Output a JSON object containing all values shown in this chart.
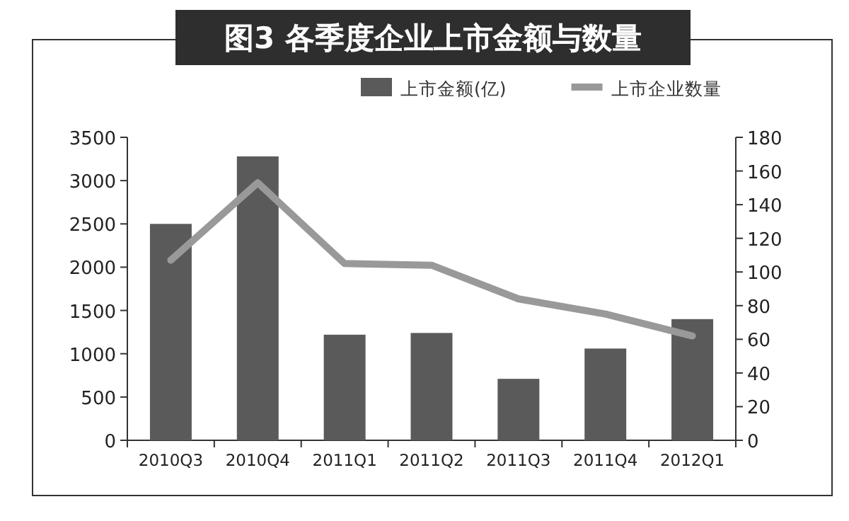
{
  "chart_data": {
    "type": "bar",
    "title": "图3  各季度企业上市金额与数量",
    "categories": [
      "2010Q3",
      "2010Q4",
      "2011Q1",
      "2011Q2",
      "2011Q3",
      "2011Q4",
      "2012Q1"
    ],
    "series": [
      {
        "name": "上市金额(亿)",
        "color": "#5a5a5a",
        "values": [
          2500,
          3280,
          1220,
          1240,
          710,
          1060,
          1400
        ]
      },
      {
        "name": "上市企业数量",
        "type": "line",
        "axis": "y2",
        "color": "#999999",
        "values": [
          107,
          153,
          105,
          104,
          84,
          75,
          62
        ]
      }
    ],
    "ylim": [
      0,
      3500
    ],
    "yticks": [
      0,
      500,
      1000,
      1500,
      2000,
      2500,
      3000,
      3500
    ],
    "y2lim": [
      0,
      180
    ],
    "y2ticks": [
      0,
      20,
      40,
      60,
      80,
      100,
      120,
      140,
      160,
      180
    ],
    "grid": false,
    "legend": "top right",
    "marker": "none",
    "line_style": "solid"
  }
}
